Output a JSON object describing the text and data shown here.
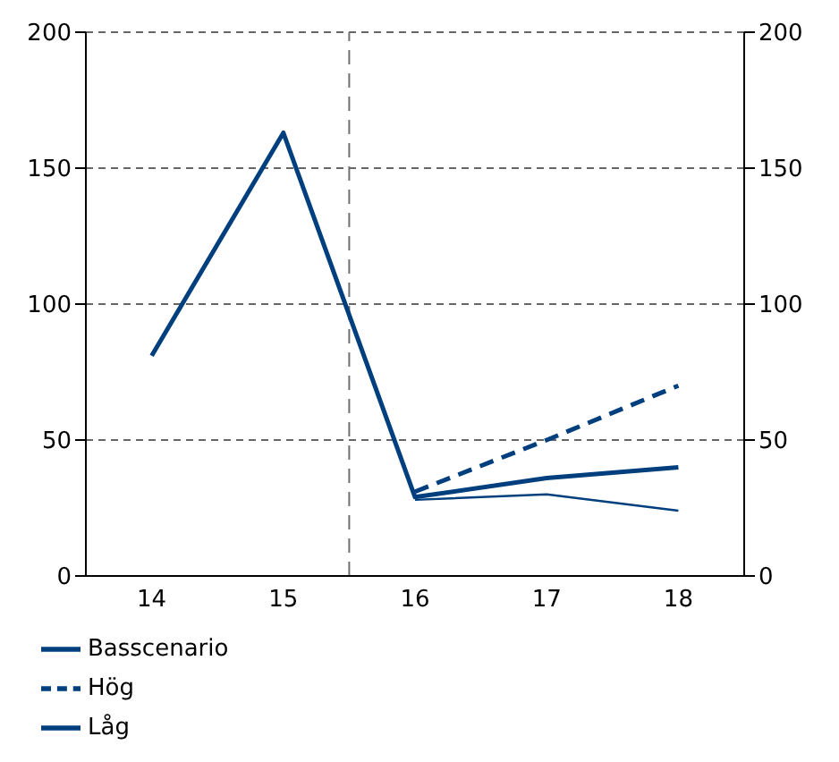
{
  "chart_data": {
    "type": "line",
    "x": [
      14,
      15,
      16,
      17,
      18
    ],
    "xlim": [
      13.5,
      18.5
    ],
    "xticks": [
      14,
      15,
      16,
      17,
      18
    ],
    "ylim": [
      0,
      200
    ],
    "yticks": [
      0,
      50,
      100,
      150,
      200
    ],
    "y2lim": [
      0,
      200
    ],
    "y2ticks": [
      0,
      50,
      100,
      150,
      200
    ],
    "grid": "y",
    "legend": "bottom",
    "marker": "none",
    "series": [
      {
        "name": "Basscenario",
        "color": "#003f7d",
        "values": [
          81,
          163,
          29,
          36,
          40
        ],
        "line_style": "solid"
      },
      {
        "name": "Hög",
        "color": "#003f7d",
        "values": [
          null,
          null,
          31,
          50,
          70
        ],
        "line_style": "dashed"
      },
      {
        "name": "Låg",
        "color": "#003f7d",
        "values": [
          null,
          null,
          28,
          30,
          24
        ],
        "line_style": "solid"
      }
    ],
    "ref_lines": [
      {
        "axis": "x",
        "value": 15.5,
        "color": "#707070",
        "line_style": "dashed"
      }
    ]
  }
}
